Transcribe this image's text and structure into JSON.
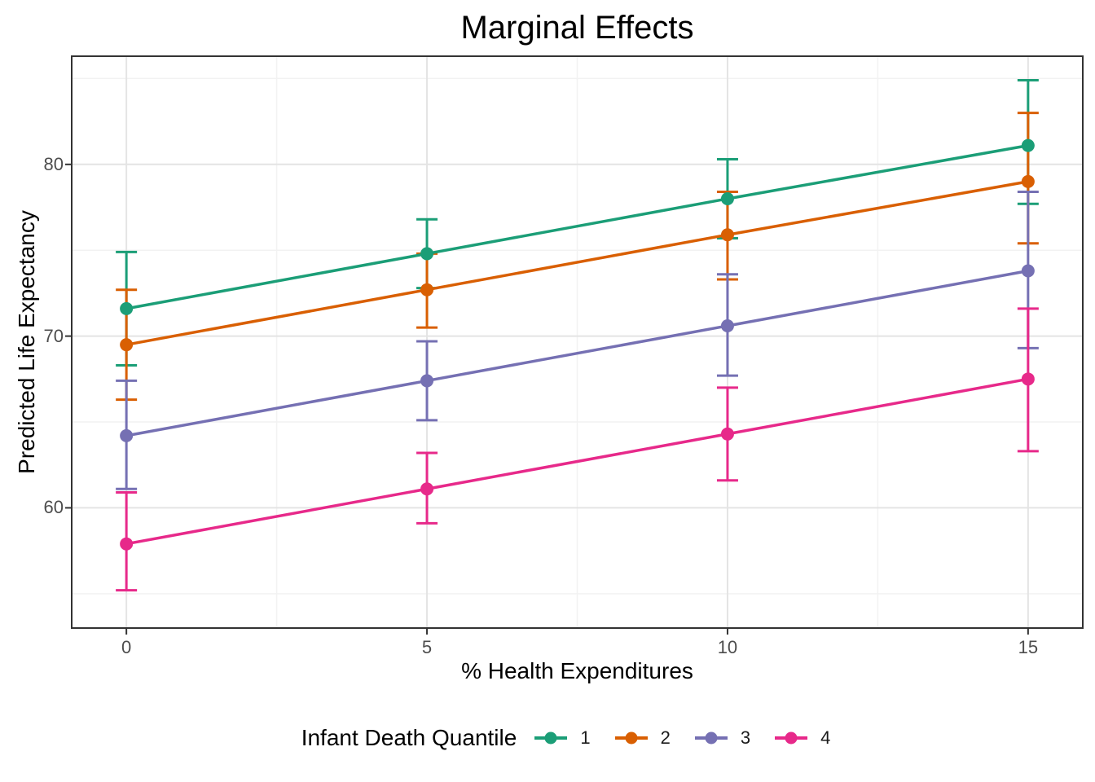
{
  "title": "Marginal Effects",
  "axes": {
    "x": {
      "label": "% Health Expenditures",
      "ticks": [
        0,
        5,
        10,
        15
      ],
      "minor_ticks": [
        2.5,
        7.5,
        12.5
      ],
      "lim": [
        -0.91,
        15.91
      ]
    },
    "y": {
      "label": "Predicted Life Expectancy",
      "ticks": [
        60,
        70,
        80
      ],
      "minor_ticks": [
        55,
        65,
        75,
        85
      ],
      "lim": [
        53.0,
        86.3
      ]
    }
  },
  "legend": {
    "title": "Infant Death Quantile",
    "items": [
      {
        "label": "1",
        "color": "#1B9E77"
      },
      {
        "label": "2",
        "color": "#D95F02"
      },
      {
        "label": "3",
        "color": "#7570B3"
      },
      {
        "label": "4",
        "color": "#E7298A"
      }
    ]
  },
  "style_colors": {
    "panel_border": "#333333",
    "tick_mark": "#333333",
    "grid_major": "#e4e4e4",
    "grid_minor": "#f2f2f2",
    "tick_text": "#4d4d4d",
    "background": "#ffffff"
  },
  "chart_data": {
    "type": "line",
    "title": "Marginal Effects",
    "xlabel": "% Health Expenditures",
    "ylabel": "Predicted Life Expectancy",
    "legend_title": "Infant Death Quantile",
    "legend_position": "bottom",
    "grid": true,
    "x": [
      0,
      5,
      10,
      15
    ],
    "xlim": [
      -0.91,
      15.91
    ],
    "ylim": [
      53.0,
      86.3
    ],
    "series": [
      {
        "name": "1",
        "color": "#1B9E77",
        "y": [
          71.6,
          74.8,
          78.0,
          81.1
        ],
        "ci_low": [
          68.3,
          72.8,
          75.7,
          77.7
        ],
        "ci_high": [
          74.9,
          76.8,
          80.3,
          84.9
        ]
      },
      {
        "name": "2",
        "color": "#D95F02",
        "y": [
          69.5,
          72.7,
          75.9,
          79.0
        ],
        "ci_low": [
          66.3,
          70.5,
          73.3,
          75.4
        ],
        "ci_high": [
          72.7,
          74.8,
          78.4,
          83.0
        ]
      },
      {
        "name": "3",
        "color": "#7570B3",
        "y": [
          64.2,
          67.4,
          70.6,
          73.8
        ],
        "ci_low": [
          61.1,
          65.1,
          67.7,
          69.3
        ],
        "ci_high": [
          67.4,
          69.7,
          73.6,
          78.4
        ]
      },
      {
        "name": "4",
        "color": "#E7298A",
        "y": [
          57.9,
          61.1,
          64.3,
          67.5
        ],
        "ci_low": [
          55.2,
          59.1,
          61.6,
          63.3
        ],
        "ci_high": [
          60.9,
          63.2,
          67.0,
          71.6
        ]
      }
    ]
  }
}
